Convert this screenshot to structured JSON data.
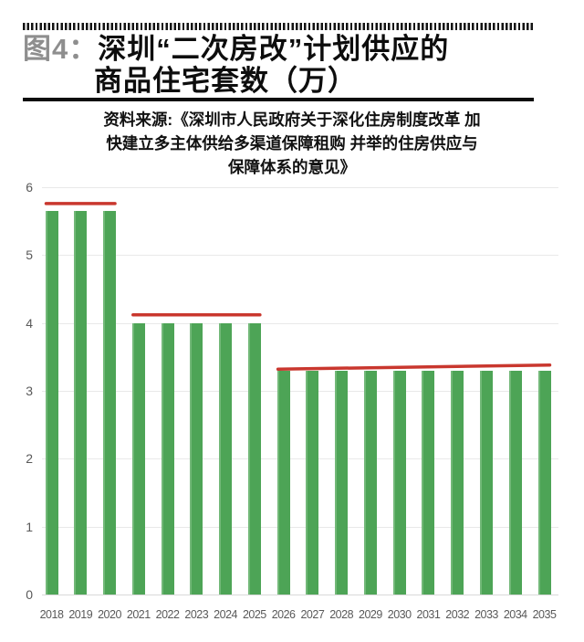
{
  "header": {
    "figure_label": "图4：",
    "title_line1": "深圳“二次房改”计划供应的",
    "title_line2": "商品住宅套数（万）",
    "source_lines": [
      "资料来源:《深圳市人民政府关于深化住房制度改革 加",
      "快建立多主体供给多渠道保障租购 并举的住房供应与",
      "保障体系的意见》"
    ]
  },
  "colors": {
    "bar_green": "#4DA456",
    "bar_green_light": "#72B878",
    "annotation_red": "#C9372E",
    "gridline": "#e9e9e9",
    "axis_label": "#595959",
    "figure_label_gray": "#8e8e8e",
    "title_black": "#0d0d0d"
  },
  "chart_data": {
    "type": "bar",
    "title": "深圳“二次房改”计划供应的商品住宅套数（万）",
    "xlabel": "",
    "ylabel": "",
    "categories": [
      "2018",
      "2019",
      "2020",
      "2021",
      "2022",
      "2023",
      "2024",
      "2025",
      "2026",
      "2027",
      "2028",
      "2029",
      "2030",
      "2031",
      "2032",
      "2033",
      "2034",
      "2035"
    ],
    "values": [
      5.65,
      5.65,
      5.65,
      4.0,
      4.0,
      4.0,
      4.0,
      4.0,
      3.3,
      3.3,
      3.3,
      3.3,
      3.3,
      3.3,
      3.3,
      3.3,
      3.3,
      3.3
    ],
    "ylim": [
      0,
      6
    ],
    "yticks": [
      0,
      1,
      2,
      3,
      4,
      5,
      6
    ],
    "grid": true,
    "legend": false,
    "annotations": [
      {
        "type": "line",
        "year_start": "2018",
        "year_end": "2020",
        "value_start": 5.76,
        "value_end": 5.76
      },
      {
        "type": "line",
        "year_start": "2021",
        "year_end": "2025",
        "value_start": 4.12,
        "value_end": 4.12
      },
      {
        "type": "line",
        "year_start": "2026",
        "year_end": "2035",
        "value_start": 3.32,
        "value_end": 3.38
      }
    ]
  }
}
